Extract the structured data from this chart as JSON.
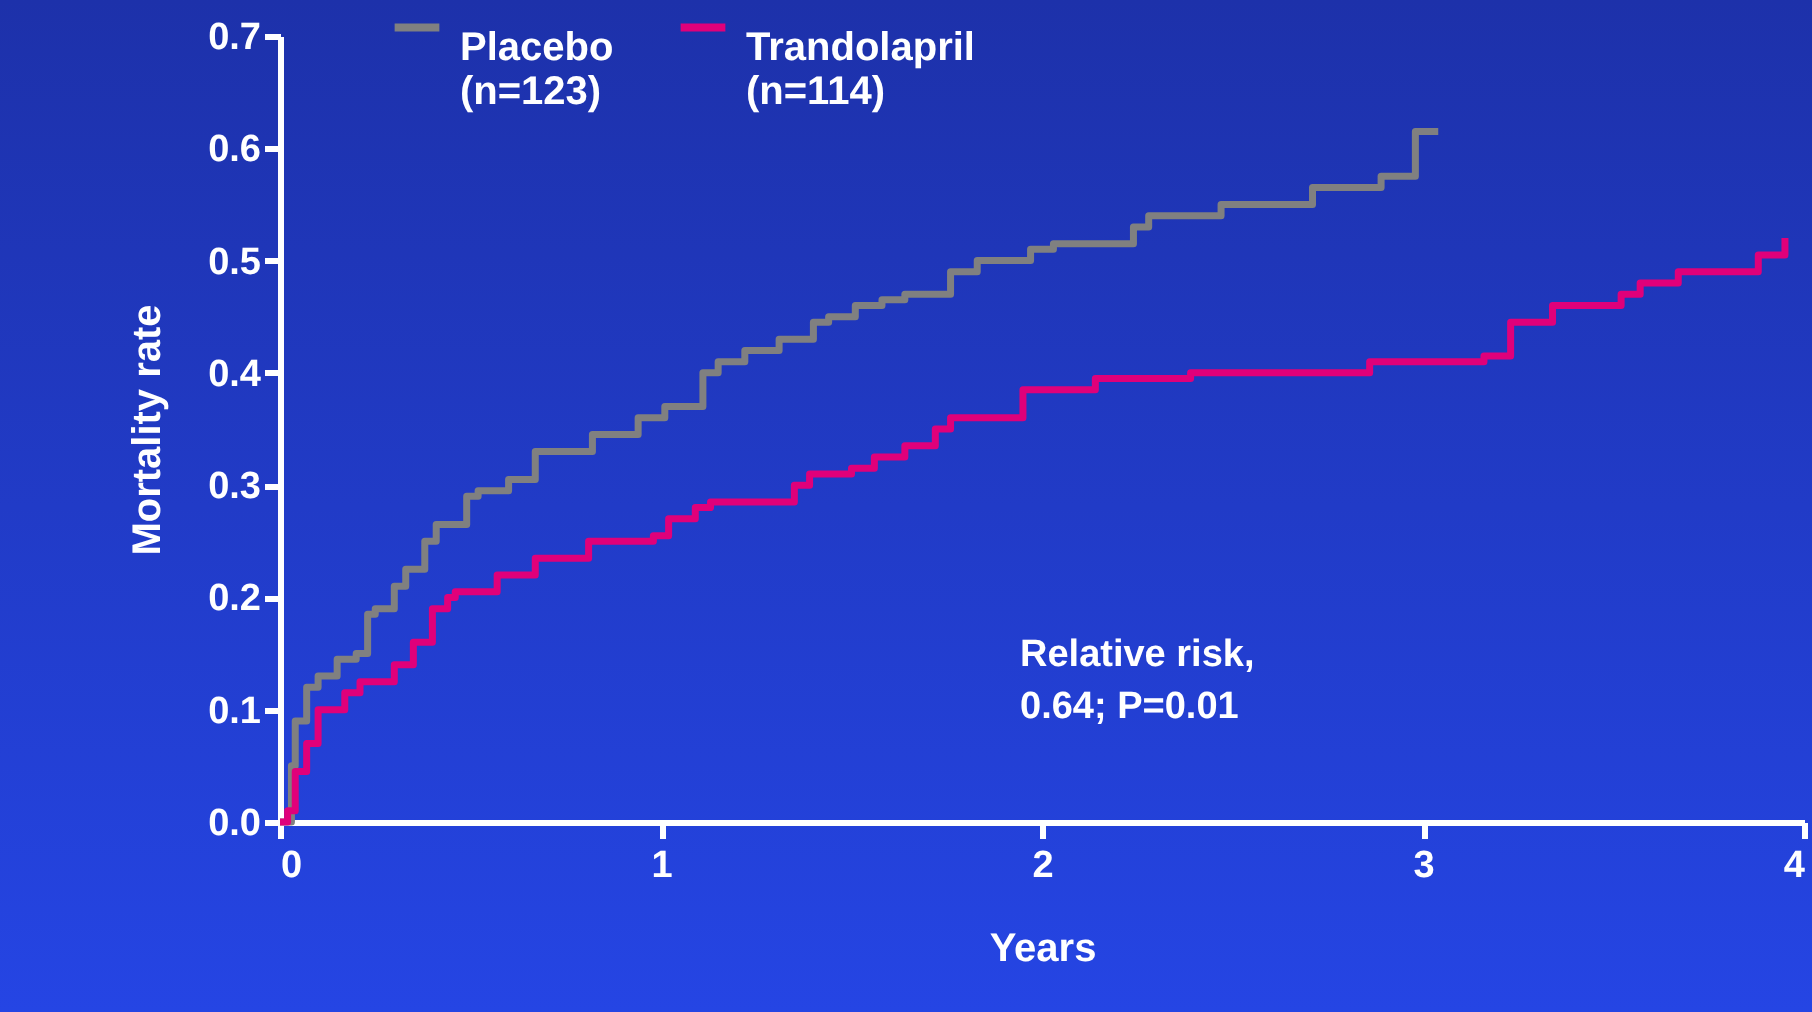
{
  "chart_data": {
    "type": "step",
    "xlabel": "Years",
    "ylabel": "Mortality rate",
    "xlim": [
      0,
      4
    ],
    "xticks": [
      0,
      1,
      2,
      3,
      4
    ],
    "ylim": [
      0,
      0.7
    ],
    "yticks": [
      {
        "value": 0,
        "label": "0.0"
      },
      0.1,
      0.2,
      0.3,
      0.4,
      0.5,
      0.6,
      0.7
    ],
    "grid": false,
    "legend": "top left",
    "line_style": "solid",
    "marker": "none",
    "annotations": [
      "Relative risk,\n0.64; P=0.01"
    ],
    "series": [
      {
        "name": "Placebo\n(n=123)",
        "color": "#808080",
        "x": [
          0,
          0.03,
          0.04,
          0.07,
          0.1,
          0.15,
          0.2,
          0.23,
          0.25,
          0.3,
          0.33,
          0.38,
          0.41,
          0.49,
          0.52,
          0.6,
          0.67,
          0.82,
          0.94,
          1.01,
          1.11,
          1.15,
          1.22,
          1.31,
          1.4,
          1.44,
          1.51,
          1.58,
          1.64,
          1.76,
          1.83,
          1.97,
          2.03,
          2.24,
          2.28,
          2.47,
          2.71,
          2.89,
          2.98,
          3.04
        ],
        "values": [
          0,
          0.05,
          0.09,
          0.12,
          0.13,
          0.145,
          0.15,
          0.185,
          0.19,
          0.21,
          0.225,
          0.25,
          0.265,
          0.29,
          0.295,
          0.305,
          0.33,
          0.345,
          0.36,
          0.37,
          0.4,
          0.41,
          0.42,
          0.43,
          0.445,
          0.45,
          0.46,
          0.465,
          0.47,
          0.49,
          0.5,
          0.51,
          0.515,
          0.53,
          0.54,
          0.55,
          0.565,
          0.575,
          0.615,
          0.615
        ]
      },
      {
        "name": "Trandolapril\n(n=114)",
        "color": "#e0007a",
        "x": [
          0,
          0.02,
          0.04,
          0.07,
          0.1,
          0.17,
          0.21,
          0.3,
          0.35,
          0.4,
          0.44,
          0.46,
          0.57,
          0.67,
          0.81,
          0.98,
          1.02,
          1.09,
          1.13,
          1.35,
          1.39,
          1.5,
          1.56,
          1.64,
          1.72,
          1.76,
          1.95,
          2.14,
          2.39,
          2.86,
          3.16,
          3.23,
          3.34,
          3.52,
          3.57,
          3.67,
          3.88,
          3.95
        ],
        "values": [
          0,
          0.01,
          0.045,
          0.07,
          0.1,
          0.115,
          0.125,
          0.14,
          0.16,
          0.19,
          0.2,
          0.205,
          0.22,
          0.235,
          0.25,
          0.255,
          0.27,
          0.28,
          0.285,
          0.3,
          0.31,
          0.315,
          0.325,
          0.335,
          0.35,
          0.36,
          0.385,
          0.395,
          0.4,
          0.41,
          0.415,
          0.445,
          0.46,
          0.47,
          0.48,
          0.49,
          0.505,
          0.52
        ]
      }
    ]
  }
}
